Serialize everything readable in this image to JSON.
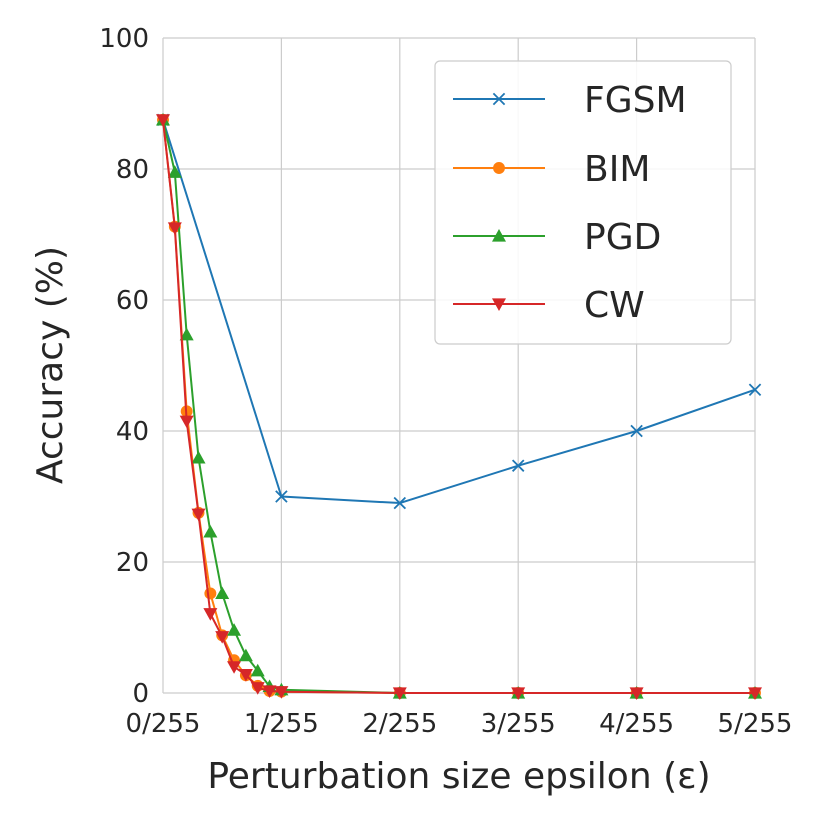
{
  "chart_data": {
    "type": "line",
    "title": "",
    "xlabel": "Perturbation size epsilon (ε)",
    "ylabel": "Accuracy (%)",
    "xlim": [
      0,
      5
    ],
    "ylim": [
      0,
      100
    ],
    "x_ticks": [
      0,
      1,
      2,
      3,
      4,
      5
    ],
    "x_tick_labels": [
      "0/255",
      "1/255",
      "2/255",
      "3/255",
      "4/255",
      "5/255"
    ],
    "y_ticks": [
      0,
      20,
      40,
      60,
      80,
      100
    ],
    "y_tick_labels": [
      "0",
      "20",
      "40",
      "60",
      "80",
      "100"
    ],
    "grid": true,
    "legend_position": "top-right",
    "series": [
      {
        "name": "FGSM",
        "color": "#1f77b4",
        "marker": "x",
        "x": [
          0,
          1,
          2,
          3,
          4,
          5
        ],
        "values": [
          87.5,
          30.0,
          29.0,
          34.7,
          40.0,
          46.3
        ]
      },
      {
        "name": "BIM",
        "color": "#ff7f0e",
        "marker": "circle",
        "x": [
          0,
          0.1,
          0.2,
          0.3,
          0.4,
          0.5,
          0.6,
          0.7,
          0.8,
          0.9,
          1,
          2,
          3,
          4,
          5
        ],
        "values": [
          87.5,
          71.2,
          43.0,
          27.5,
          15.2,
          8.8,
          5.0,
          2.7,
          1.1,
          0.3,
          0.2,
          0,
          0,
          0,
          0
        ]
      },
      {
        "name": "PGD",
        "color": "#2ca02c",
        "marker": "triangle-up",
        "x": [
          0,
          0.1,
          0.2,
          0.3,
          0.4,
          0.5,
          0.6,
          0.7,
          0.8,
          0.9,
          1,
          2,
          3,
          4,
          5
        ],
        "values": [
          87.5,
          79.5,
          54.7,
          35.9,
          24.6,
          15.2,
          9.6,
          5.7,
          3.4,
          1.0,
          0.5,
          0,
          0,
          0,
          0
        ]
      },
      {
        "name": "CW",
        "color": "#d62728",
        "marker": "triangle-down",
        "x": [
          0,
          0.1,
          0.2,
          0.3,
          0.4,
          0.5,
          0.6,
          0.7,
          0.8,
          0.9,
          1,
          2,
          3,
          4,
          5
        ],
        "values": [
          87.5,
          71.0,
          41.5,
          27.3,
          12.1,
          8.6,
          4.0,
          2.8,
          0.8,
          0.3,
          0.2,
          0,
          0,
          0,
          0
        ]
      }
    ]
  }
}
